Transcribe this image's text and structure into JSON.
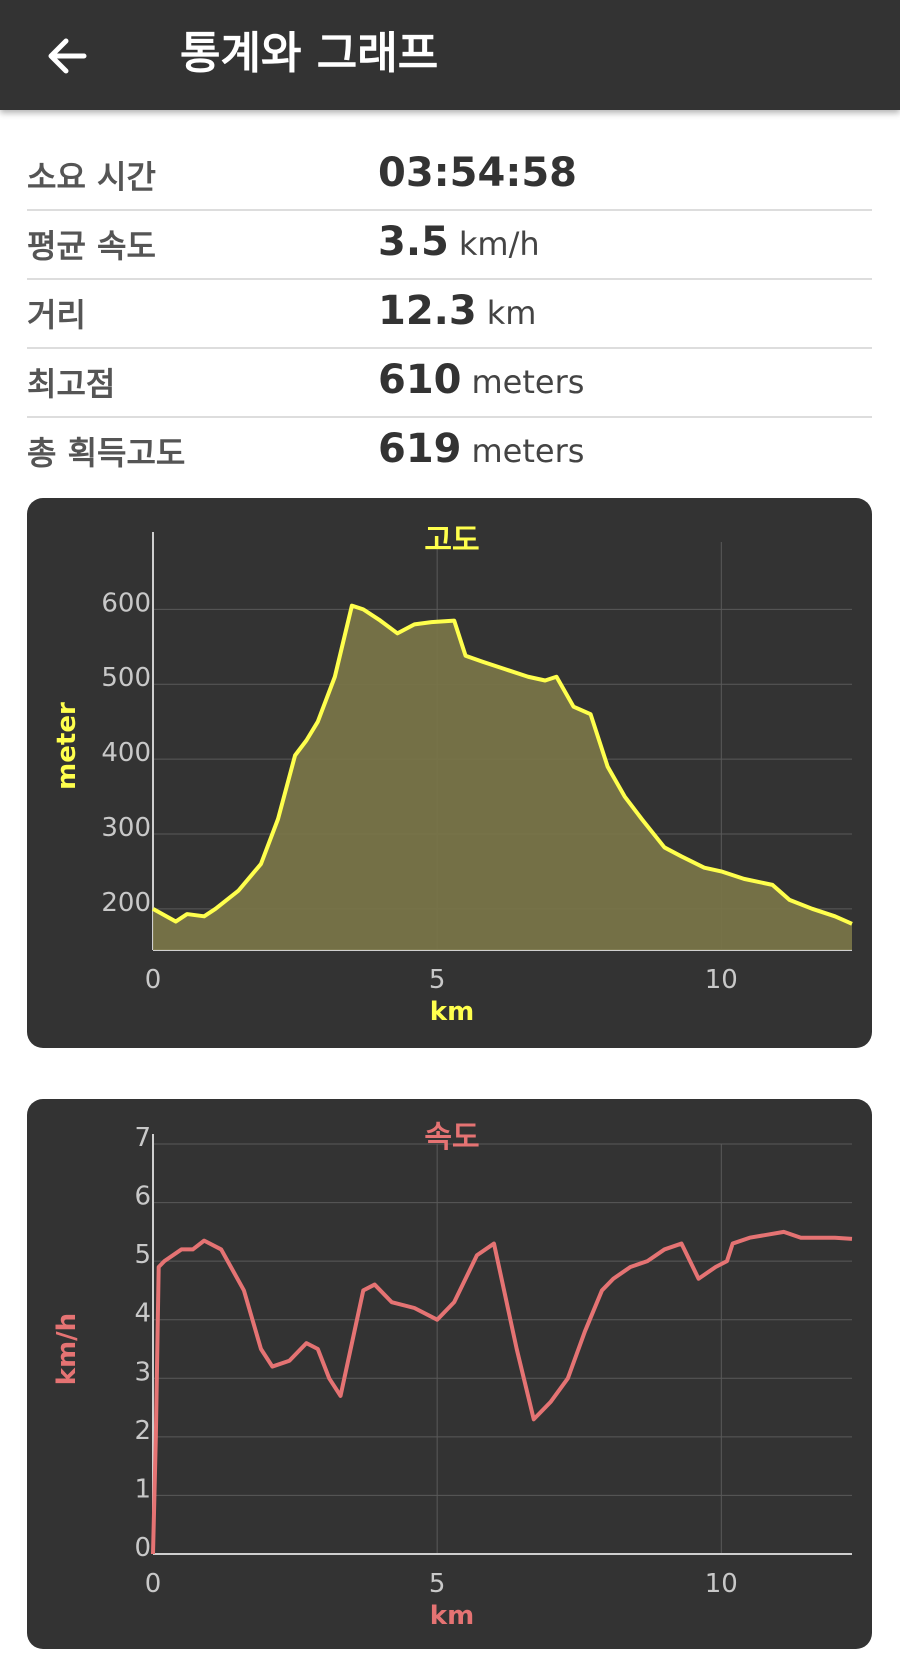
{
  "header": {
    "title": "통계와 그래프",
    "back_icon": "arrow-left-icon"
  },
  "stats": [
    {
      "label": "소요 시간",
      "value": "03:54:58",
      "unit": ""
    },
    {
      "label": "평균 속도",
      "value": "3.5",
      "unit": "km/h"
    },
    {
      "label": "거리",
      "value": "12.3",
      "unit": "km"
    },
    {
      "label": "최고점",
      "value": "610",
      "unit": "meters"
    },
    {
      "label": "총 획득고도",
      "value": "619",
      "unit": "meters"
    }
  ],
  "colors": {
    "appbar": "#333333",
    "elevation": "#ffff4d",
    "elevation_fill": "#7a7548",
    "speed": "#e57373",
    "card": "#333333"
  },
  "chart_data": [
    {
      "type": "area",
      "title": "고도",
      "xlabel": "km",
      "ylabel": "meter",
      "xlim": [
        0,
        12.3
      ],
      "ylim": [
        145,
        690
      ],
      "x_ticks": [
        0,
        5,
        10
      ],
      "y_ticks": [
        200,
        300,
        400,
        500,
        600
      ],
      "grid": true,
      "x": [
        0,
        0.4,
        0.6,
        0.9,
        1.1,
        1.5,
        1.9,
        2.2,
        2.5,
        2.7,
        2.9,
        3.2,
        3.5,
        3.7,
        4.0,
        4.3,
        4.6,
        4.9,
        5.3,
        5.5,
        5.8,
        6.2,
        6.6,
        6.9,
        7.1,
        7.4,
        7.7,
        8.0,
        8.3,
        8.6,
        9.0,
        9.3,
        9.7,
        10.0,
        10.4,
        10.9,
        11.2,
        11.6,
        12.0,
        12.3
      ],
      "values": [
        200,
        183,
        193,
        190,
        200,
        224,
        260,
        320,
        405,
        425,
        450,
        510,
        605,
        600,
        585,
        568,
        580,
        583,
        585,
        538,
        530,
        520,
        510,
        505,
        510,
        470,
        460,
        390,
        350,
        320,
        282,
        270,
        255,
        250,
        240,
        232,
        212,
        200,
        190,
        180
      ]
    },
    {
      "type": "line",
      "title": "속도",
      "xlabel": "km",
      "ylabel": "km/h",
      "xlim": [
        0,
        12.3
      ],
      "ylim": [
        0,
        7
      ],
      "x_ticks": [
        0,
        5,
        10
      ],
      "y_ticks": [
        0,
        1,
        2,
        3,
        4,
        5,
        6,
        7
      ],
      "grid": true,
      "x": [
        0,
        0.05,
        0.1,
        0.2,
        0.5,
        0.7,
        0.9,
        1.2,
        1.6,
        1.9,
        2.1,
        2.4,
        2.7,
        2.9,
        3.1,
        3.3,
        3.5,
        3.7,
        3.9,
        4.2,
        4.6,
        5.0,
        5.3,
        5.7,
        6.0,
        6.4,
        6.7,
        7.0,
        7.3,
        7.6,
        7.9,
        8.1,
        8.4,
        8.7,
        9.0,
        9.3,
        9.6,
        9.9,
        10.1,
        10.2,
        10.5,
        10.8,
        11.1,
        11.4,
        11.7,
        12.0,
        12.3
      ],
      "values": [
        0,
        2.0,
        4.9,
        5.0,
        5.2,
        5.2,
        5.35,
        5.2,
        4.5,
        3.5,
        3.2,
        3.3,
        3.6,
        3.5,
        3.0,
        2.7,
        3.6,
        4.5,
        4.6,
        4.3,
        4.2,
        4.0,
        4.3,
        5.1,
        5.3,
        3.5,
        2.3,
        2.6,
        3.0,
        3.8,
        4.5,
        4.7,
        4.9,
        5.0,
        5.2,
        5.3,
        4.7,
        4.9,
        5.0,
        5.3,
        5.4,
        5.45,
        5.5,
        5.4,
        5.4,
        5.4,
        5.38
      ]
    }
  ]
}
